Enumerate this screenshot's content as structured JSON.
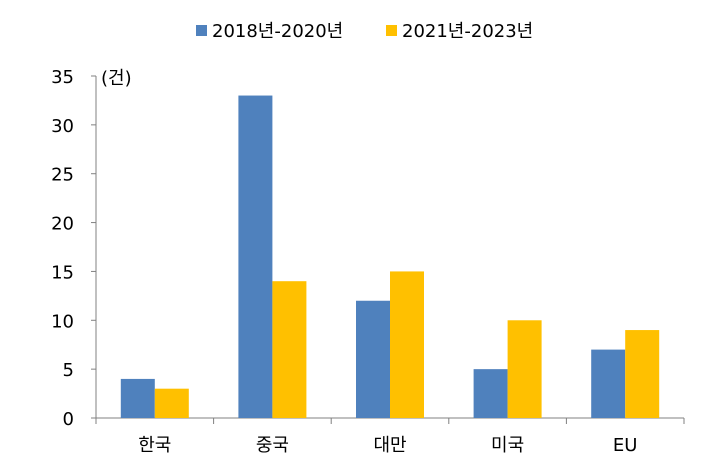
{
  "chart_data": {
    "type": "bar",
    "title": "",
    "xlabel": "",
    "ylabel": "",
    "unit_label": "(건)",
    "categories": [
      "한국",
      "중국",
      "대만",
      "미국",
      "EU"
    ],
    "series": [
      {
        "name": "2018년-2020년",
        "color": "#4f81bd",
        "values": [
          4,
          33,
          12,
          5,
          7
        ]
      },
      {
        "name": "2021년-2023년",
        "color": "#ffc000",
        "values": [
          3,
          14,
          15,
          10,
          9
        ]
      }
    ],
    "ylim": [
      0,
      35
    ],
    "yticks": [
      0,
      5,
      10,
      15,
      20,
      25,
      30,
      35
    ],
    "grid": false,
    "legend_position": "top-center"
  }
}
